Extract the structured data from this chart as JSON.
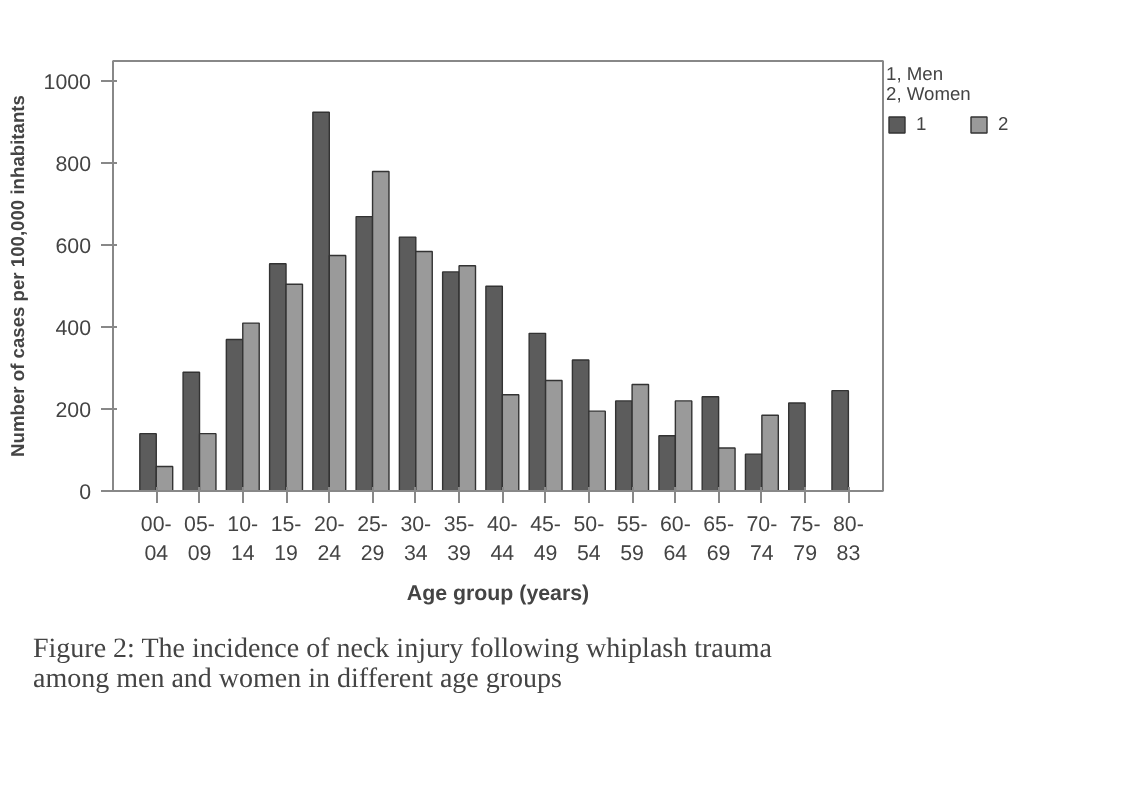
{
  "chart_data": {
    "type": "bar",
    "categories": [
      "00-\n04",
      "05-\n09",
      "10-\n14",
      "15-\n19",
      "20-\n24",
      "25-\n29",
      "30-\n34",
      "35-\n39",
      "40-\n44",
      "45-\n49",
      "50-\n54",
      "55-\n59",
      "60-\n64",
      "65-\n69",
      "70-\n74",
      "75-\n79",
      "80-\n83"
    ],
    "series": [
      {
        "name": "1",
        "color": "#5c5c5c",
        "values": [
          140,
          290,
          370,
          555,
          925,
          670,
          620,
          535,
          500,
          385,
          320,
          220,
          135,
          230,
          90,
          215,
          245
        ]
      },
      {
        "name": "2",
        "color": "#9a9a9a",
        "values": [
          60,
          140,
          410,
          505,
          575,
          780,
          585,
          550,
          235,
          270,
          195,
          260,
          220,
          105,
          185,
          null,
          null
        ]
      }
    ],
    "xlabel": "Age group (years)",
    "ylabel": "Number of cases per 100,000 inhabitants",
    "legend_title": "1, Men\n2, Women",
    "legend": "top right",
    "ylim": [
      0,
      1050
    ],
    "yticks": [
      0,
      200,
      400,
      600,
      800,
      1000
    ],
    "grid": false,
    "annotations": [
      "Figure 2: The incidence of neck injury following whiplash trauma among men and women in different age groups"
    ]
  }
}
